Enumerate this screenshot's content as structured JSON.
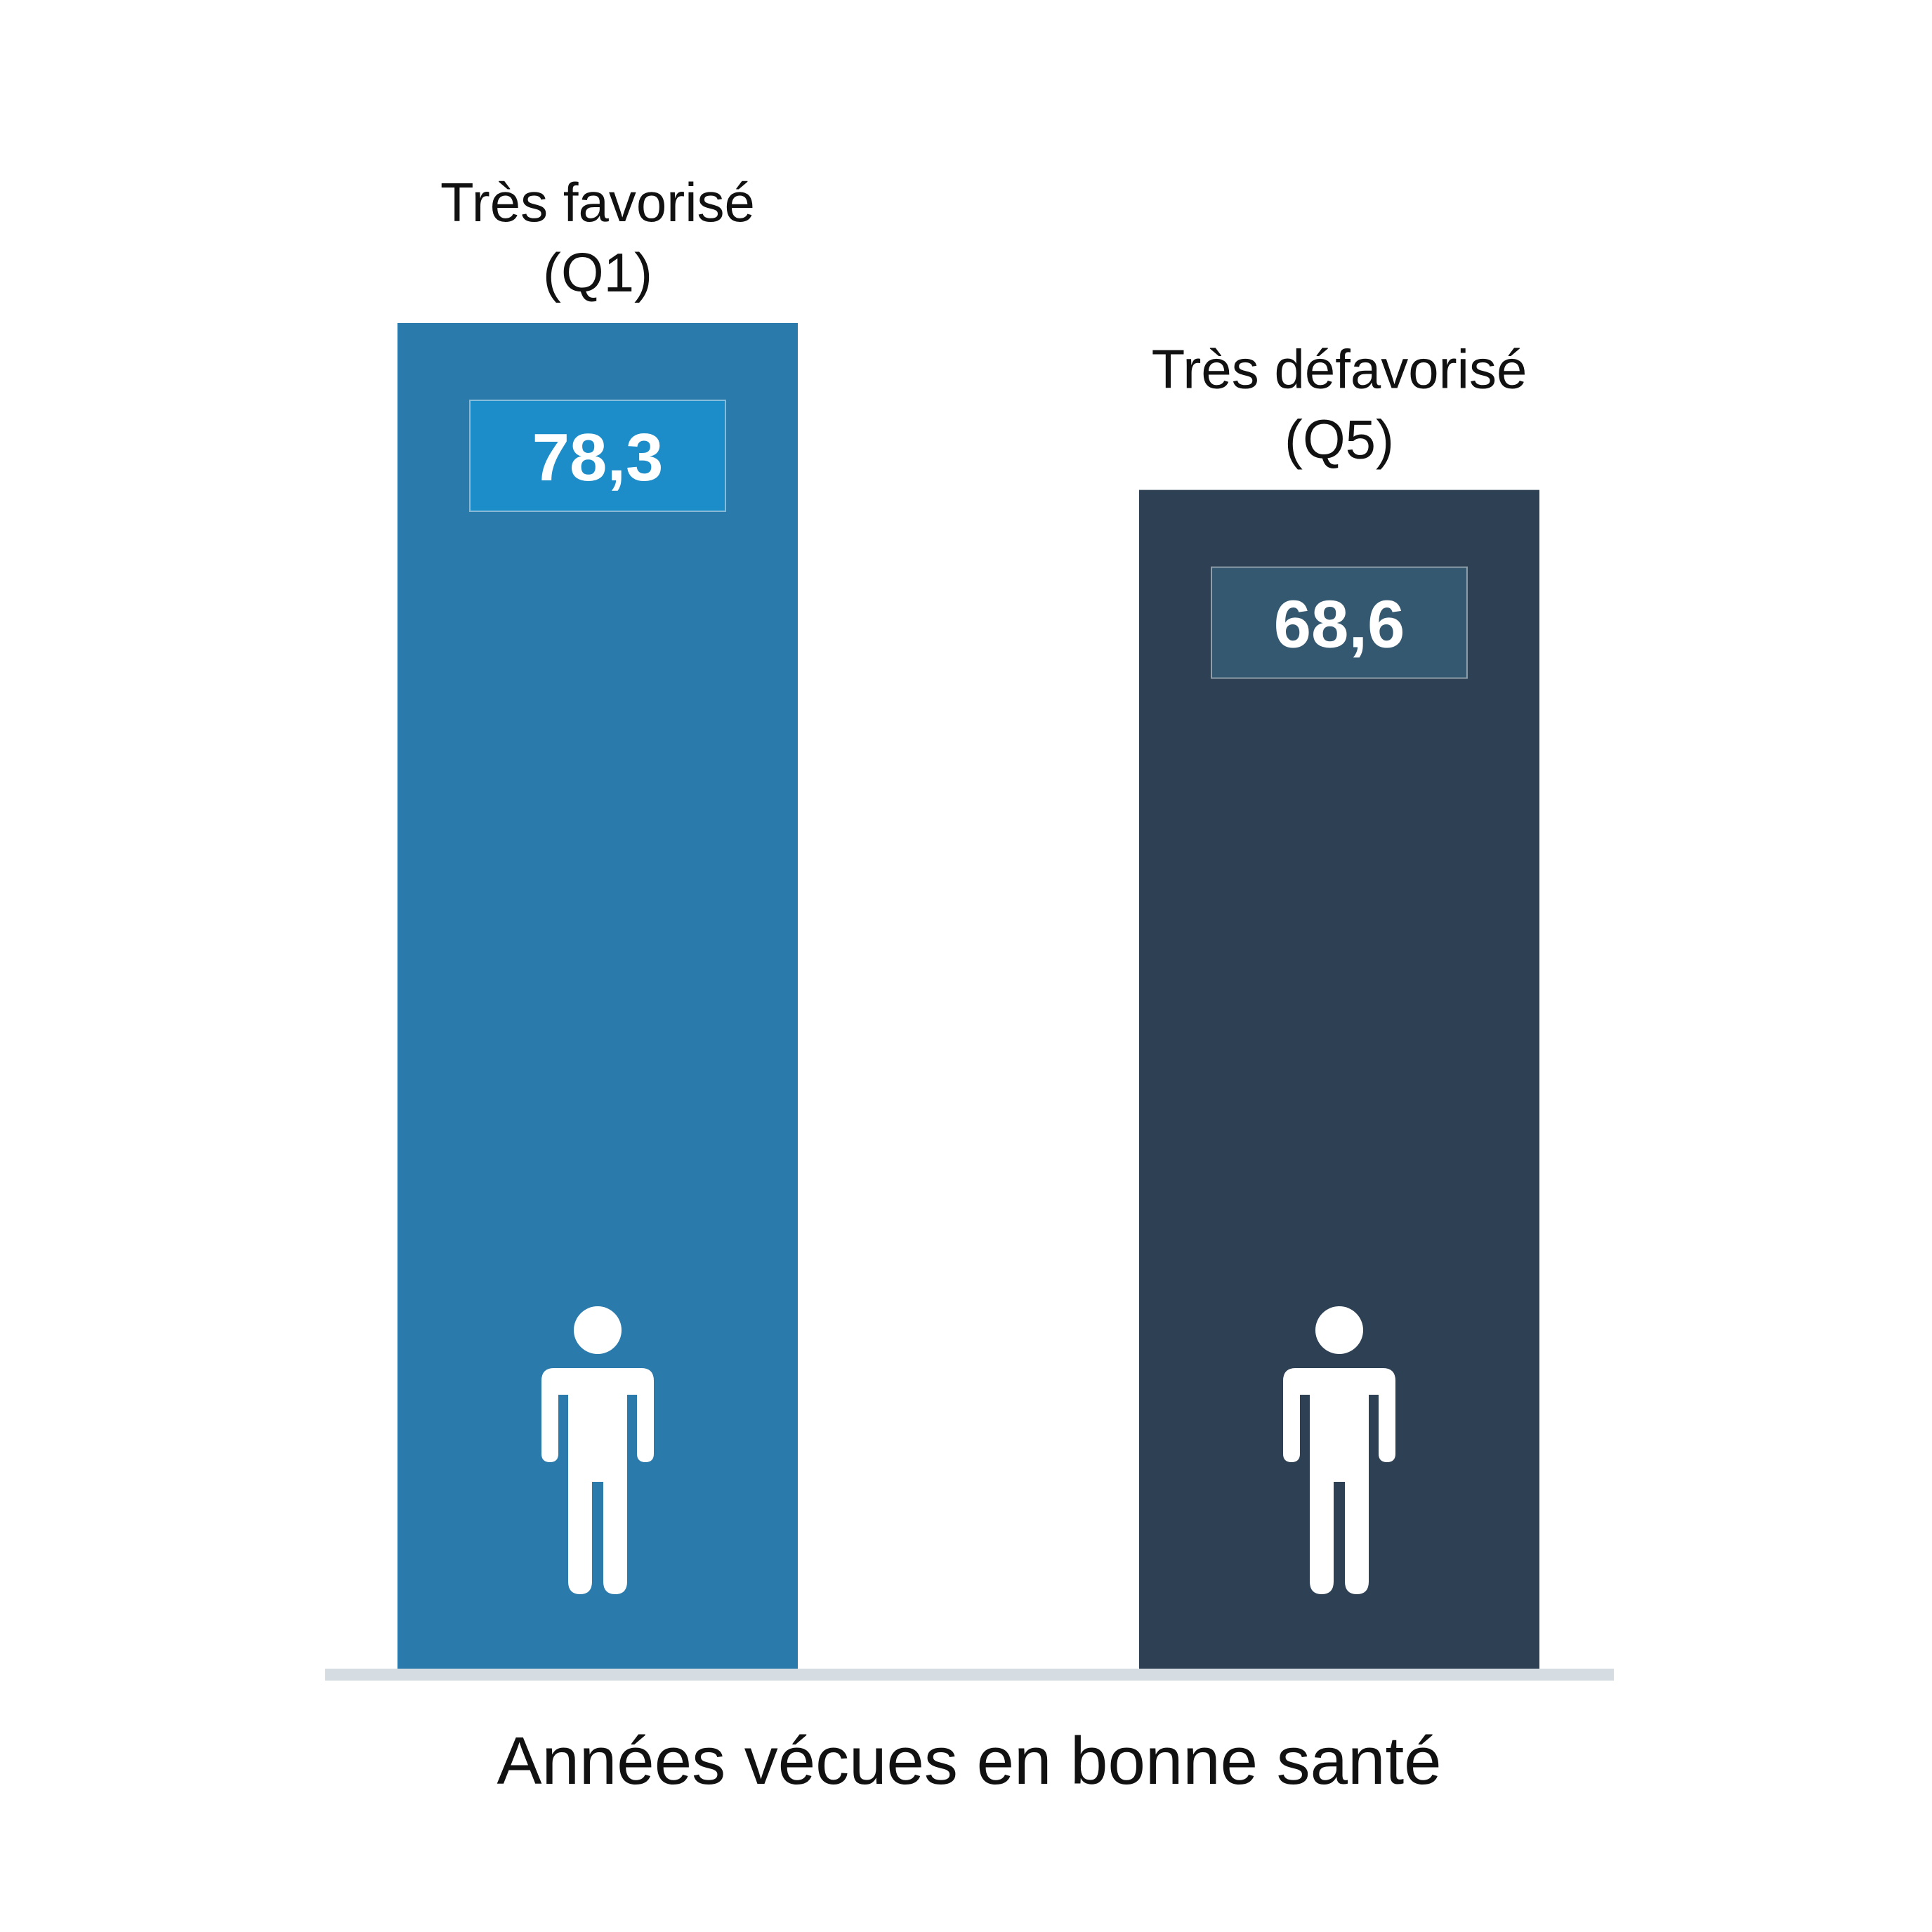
{
  "chart_data": {
    "type": "bar",
    "categories": [
      [
        "Très favorisé",
        "(Q1)"
      ],
      [
        "Très défavorisé",
        "(Q5)"
      ]
    ],
    "values": [
      78.3,
      68.6
    ],
    "value_labels": [
      "78,3",
      "68,6"
    ],
    "xlabel": "Années vécues en bonne santé",
    "ylim": [
      0,
      78.3
    ],
    "grid": false,
    "bar_colors": [
      "#2a7aab",
      "#2d4054"
    ],
    "value_box_colors": [
      "#1d8dc9",
      "#34586f"
    ],
    "baseline_color": "#d5dde2",
    "icon": "person-icon"
  }
}
